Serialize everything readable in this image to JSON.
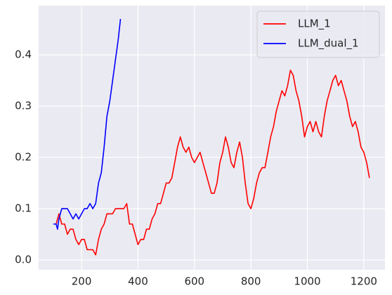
{
  "chart_data": {
    "type": "line",
    "series": [
      {
        "name": "LLM_1",
        "color": "#ff0000",
        "x": [
          110,
          120,
          130,
          140,
          150,
          160,
          170,
          180,
          190,
          200,
          210,
          220,
          230,
          240,
          250,
          260,
          270,
          280,
          290,
          300,
          310,
          320,
          330,
          340,
          350,
          360,
          365,
          370,
          380,
          390,
          400,
          410,
          420,
          430,
          440,
          450,
          460,
          470,
          480,
          490,
          500,
          510,
          520,
          530,
          540,
          550,
          560,
          570,
          580,
          590,
          600,
          610,
          620,
          630,
          640,
          650,
          660,
          670,
          680,
          690,
          700,
          710,
          720,
          730,
          740,
          750,
          760,
          770,
          780,
          790,
          800,
          810,
          820,
          830,
          840,
          850,
          860,
          870,
          880,
          890,
          900,
          910,
          920,
          930,
          940,
          950,
          960,
          970,
          980,
          990,
          1000,
          1010,
          1020,
          1030,
          1040,
          1050,
          1060,
          1070,
          1080,
          1090,
          1100,
          1110,
          1120,
          1130,
          1140,
          1150,
          1160,
          1170,
          1180,
          1190,
          1200,
          1210,
          1220
        ],
        "values": [
          0.07,
          0.09,
          0.07,
          0.07,
          0.05,
          0.06,
          0.06,
          0.04,
          0.03,
          0.04,
          0.04,
          0.02,
          0.02,
          0.02,
          0.01,
          0.04,
          0.06,
          0.07,
          0.09,
          0.09,
          0.09,
          0.1,
          0.1,
          0.1,
          0.1,
          0.11,
          0.09,
          0.07,
          0.07,
          0.05,
          0.03,
          0.04,
          0.04,
          0.06,
          0.06,
          0.08,
          0.09,
          0.11,
          0.11,
          0.13,
          0.15,
          0.15,
          0.16,
          0.19,
          0.22,
          0.24,
          0.22,
          0.21,
          0.22,
          0.2,
          0.19,
          0.2,
          0.21,
          0.19,
          0.17,
          0.15,
          0.13,
          0.13,
          0.15,
          0.19,
          0.21,
          0.24,
          0.22,
          0.19,
          0.18,
          0.21,
          0.23,
          0.2,
          0.15,
          0.11,
          0.1,
          0.12,
          0.15,
          0.17,
          0.18,
          0.18,
          0.21,
          0.24,
          0.26,
          0.29,
          0.31,
          0.33,
          0.32,
          0.34,
          0.37,
          0.36,
          0.33,
          0.31,
          0.28,
          0.24,
          0.26,
          0.27,
          0.25,
          0.27,
          0.25,
          0.24,
          0.28,
          0.31,
          0.33,
          0.35,
          0.36,
          0.34,
          0.35,
          0.33,
          0.31,
          0.28,
          0.26,
          0.27,
          0.25,
          0.22,
          0.21,
          0.19,
          0.16
        ]
      },
      {
        "name": "LLM_dual_1",
        "color": "#0000ff",
        "x": [
          100,
          110,
          115,
          120,
          130,
          140,
          150,
          160,
          170,
          180,
          190,
          200,
          210,
          220,
          230,
          240,
          250,
          260,
          270,
          280,
          290,
          300,
          310,
          320,
          330,
          338
        ],
        "values": [
          0.07,
          0.07,
          0.06,
          0.08,
          0.1,
          0.1,
          0.1,
          0.09,
          0.08,
          0.09,
          0.08,
          0.09,
          0.1,
          0.1,
          0.11,
          0.1,
          0.11,
          0.15,
          0.17,
          0.22,
          0.28,
          0.31,
          0.35,
          0.39,
          0.43,
          0.47
        ]
      }
    ],
    "xlim": [
      48,
      1275
    ],
    "xticks": [
      200,
      400,
      600,
      800,
      1000,
      1200
    ],
    "ylim": [
      -0.019,
      0.496
    ],
    "yticks": [
      {
        "value": 0,
        "label": "0.0"
      },
      0.1,
      0.2,
      0.3,
      0.4
    ],
    "grid": true,
    "legend": "upper right"
  }
}
